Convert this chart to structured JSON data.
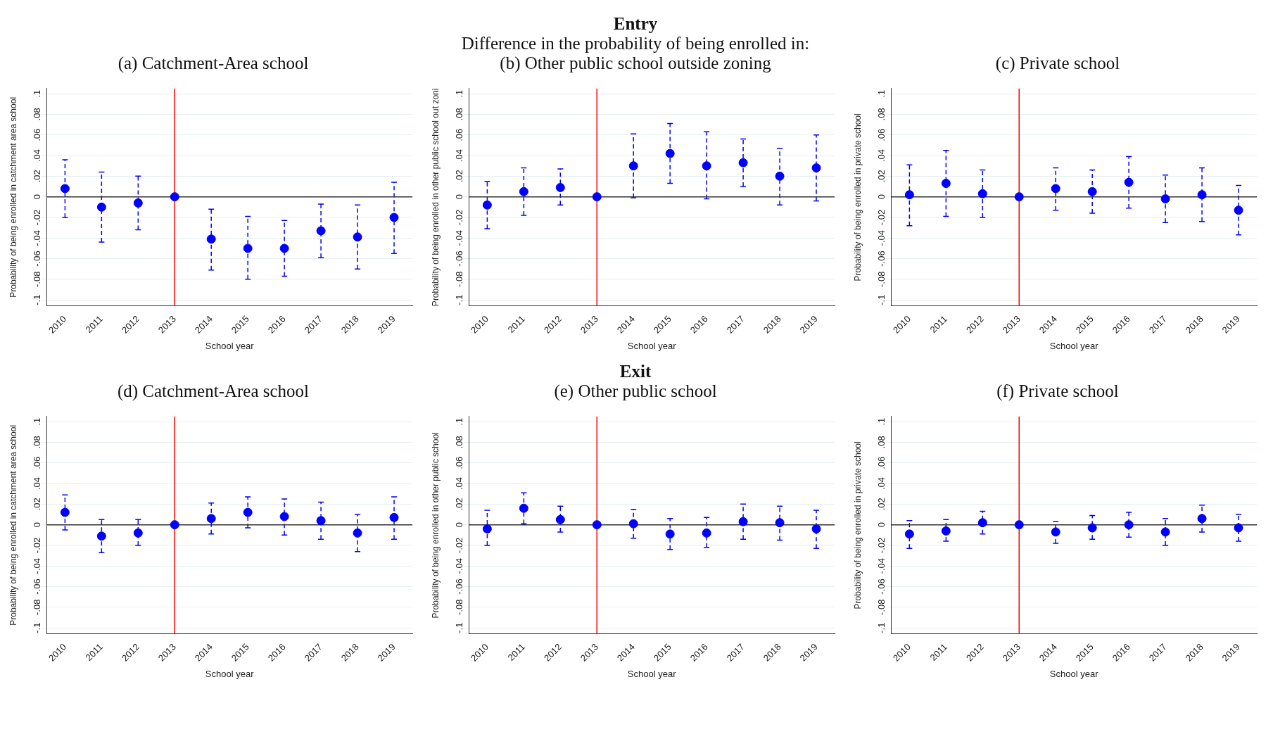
{
  "chart_data": [
    {
      "type": "scatter",
      "title": "(a) Catchment-Area school",
      "xlabel": "School year",
      "ylabel": "Probability of being enrolled in catchment area school",
      "categories": [
        "2010",
        "2011",
        "2012",
        "2013",
        "2014",
        "2015",
        "2016",
        "2017",
        "2018",
        "2019"
      ],
      "series": [
        {
          "color": "#0000ff",
          "values": [
            0.008,
            -0.01,
            -0.006,
            0,
            -0.041,
            -0.05,
            -0.05,
            -0.033,
            -0.039,
            -0.02
          ],
          "errors": [
            [
              -0.02,
              0.036
            ],
            [
              -0.044,
              0.024
            ],
            [
              -0.032,
              0.02
            ],
            null,
            [
              -0.071,
              -0.012
            ],
            [
              -0.08,
              -0.019
            ],
            [
              -0.077,
              -0.023
            ],
            [
              -0.059,
              -0.007
            ],
            [
              -0.07,
              -0.008
            ],
            [
              -0.055,
              0.014
            ]
          ]
        }
      ],
      "ylim": [
        -0.106,
        0.105
      ],
      "yticks": [
        {
          "value": -0.1,
          "label": "-.1"
        },
        {
          "value": -0.08,
          "label": "-.08"
        },
        {
          "value": -0.06,
          "label": "-.06"
        },
        {
          "value": -0.04,
          "label": "-.04"
        },
        {
          "value": -0.02,
          "label": "-.02"
        },
        {
          "value": 0,
          "label": "0"
        },
        {
          "value": 0.02,
          "label": ".02"
        },
        {
          "value": 0.04,
          "label": ".04"
        },
        {
          "value": 0.06,
          "label": ".06"
        },
        {
          "value": 0.08,
          "label": ".08"
        },
        {
          "value": 0.1,
          "label": ".1"
        }
      ],
      "ref_lines": [
        {
          "axis": "x",
          "value": "2013",
          "color": "#ff0000"
        },
        {
          "axis": "y",
          "value": 0,
          "color": "#333333"
        }
      ],
      "grid": "y",
      "legend": false,
      "marker": "circle",
      "line_style": "dashed"
    },
    {
      "type": "scatter",
      "title": "(b) Other public school outside zoning",
      "annotations": [
        "Entry",
        "Difference in the probability of being enrolled in:"
      ],
      "xlabel": "School year",
      "ylabel": "Probability of being enrolled in other public school out zoni",
      "categories": [
        "2010",
        "2011",
        "2012",
        "2013",
        "2014",
        "2015",
        "2016",
        "2017",
        "2018",
        "2019"
      ],
      "series": [
        {
          "color": "#0000ff",
          "values": [
            -0.008,
            0.005,
            0.009,
            0,
            0.03,
            0.042,
            0.03,
            0.033,
            0.02,
            0.028
          ],
          "errors": [
            [
              -0.031,
              0.015
            ],
            [
              -0.018,
              0.028
            ],
            [
              -0.008,
              0.027
            ],
            null,
            [
              -0.001,
              0.061
            ],
            [
              0.013,
              0.071
            ],
            [
              -0.002,
              0.063
            ],
            [
              0.01,
              0.056
            ],
            [
              -0.008,
              0.047
            ],
            [
              -0.004,
              0.06
            ]
          ]
        }
      ],
      "ylim": [
        -0.106,
        0.105
      ],
      "yticks": [
        {
          "value": -0.1,
          "label": "-.1"
        },
        {
          "value": -0.08,
          "label": "-.08"
        },
        {
          "value": -0.06,
          "label": "-.06"
        },
        {
          "value": -0.04,
          "label": "-.04"
        },
        {
          "value": -0.02,
          "label": "-.02"
        },
        {
          "value": 0,
          "label": "0"
        },
        {
          "value": 0.02,
          "label": ".02"
        },
        {
          "value": 0.04,
          "label": ".04"
        },
        {
          "value": 0.06,
          "label": ".06"
        },
        {
          "value": 0.08,
          "label": ".08"
        },
        {
          "value": 0.1,
          "label": ".1"
        }
      ],
      "ref_lines": [
        {
          "axis": "x",
          "value": "2013",
          "color": "#ff0000"
        },
        {
          "axis": "y",
          "value": 0,
          "color": "#333333"
        }
      ],
      "grid": "y",
      "legend": false,
      "marker": "circle",
      "line_style": "dashed"
    },
    {
      "type": "scatter",
      "title": "(c) Private school",
      "xlabel": "School year",
      "ylabel": "Probability of being enrolled in private school",
      "categories": [
        "2010",
        "2011",
        "2012",
        "2013",
        "2014",
        "2015",
        "2016",
        "2017",
        "2018",
        "2019"
      ],
      "series": [
        {
          "color": "#0000ff",
          "values": [
            0.002,
            0.013,
            0.003,
            0,
            0.008,
            0.005,
            0.014,
            -0.002,
            0.002,
            -0.013
          ],
          "errors": [
            [
              -0.028,
              0.031
            ],
            [
              -0.019,
              0.045
            ],
            [
              -0.02,
              0.026
            ],
            null,
            [
              -0.013,
              0.028
            ],
            [
              -0.016,
              0.026
            ],
            [
              -0.011,
              0.039
            ],
            [
              -0.025,
              0.021
            ],
            [
              -0.024,
              0.028
            ],
            [
              -0.037,
              0.011
            ]
          ]
        }
      ],
      "ylim": [
        -0.106,
        0.105
      ],
      "yticks": [
        {
          "value": -0.1,
          "label": "-.1"
        },
        {
          "value": -0.08,
          "label": "-.08"
        },
        {
          "value": -0.06,
          "label": "-.06"
        },
        {
          "value": -0.04,
          "label": "-.04"
        },
        {
          "value": -0.02,
          "label": "-.02"
        },
        {
          "value": 0,
          "label": "0"
        },
        {
          "value": 0.02,
          "label": ".02"
        },
        {
          "value": 0.04,
          "label": ".04"
        },
        {
          "value": 0.06,
          "label": ".06"
        },
        {
          "value": 0.08,
          "label": ".08"
        },
        {
          "value": 0.1,
          "label": ".1"
        }
      ],
      "ref_lines": [
        {
          "axis": "x",
          "value": "2013",
          "color": "#ff0000"
        },
        {
          "axis": "y",
          "value": 0,
          "color": "#333333"
        }
      ],
      "grid": "y",
      "legend": false,
      "marker": "circle",
      "line_style": "dashed"
    },
    {
      "type": "scatter",
      "title": "(d) Catchment-Area school",
      "xlabel": "School year",
      "ylabel": "Probability of being enrolled in catchment area school",
      "categories": [
        "2010",
        "2011",
        "2012",
        "2013",
        "2014",
        "2015",
        "2016",
        "2017",
        "2018",
        "2019"
      ],
      "series": [
        {
          "color": "#0000ff",
          "values": [
            0.012,
            -0.011,
            -0.008,
            0,
            0.006,
            0.012,
            0.008,
            0.004,
            -0.008,
            0.007
          ],
          "errors": [
            [
              -0.005,
              0.029
            ],
            [
              -0.027,
              0.005
            ],
            [
              -0.02,
              0.005
            ],
            null,
            [
              -0.009,
              0.021
            ],
            [
              -0.003,
              0.027
            ],
            [
              -0.01,
              0.025
            ],
            [
              -0.014,
              0.022
            ],
            [
              -0.026,
              0.01
            ],
            [
              -0.014,
              0.027
            ]
          ]
        }
      ],
      "ylim": [
        -0.106,
        0.105
      ],
      "yticks": [
        {
          "value": -0.1,
          "label": "-.1"
        },
        {
          "value": -0.08,
          "label": "-.08"
        },
        {
          "value": -0.06,
          "label": "-.06"
        },
        {
          "value": -0.04,
          "label": "-.04"
        },
        {
          "value": -0.02,
          "label": "-.02"
        },
        {
          "value": 0,
          "label": "0"
        },
        {
          "value": 0.02,
          "label": ".02"
        },
        {
          "value": 0.04,
          "label": ".04"
        },
        {
          "value": 0.06,
          "label": ".06"
        },
        {
          "value": 0.08,
          "label": ".08"
        },
        {
          "value": 0.1,
          "label": ".1"
        }
      ],
      "ref_lines": [
        {
          "axis": "x",
          "value": "2013",
          "color": "#ff0000"
        },
        {
          "axis": "y",
          "value": 0,
          "color": "#333333"
        }
      ],
      "grid": "y",
      "legend": false,
      "marker": "circle",
      "line_style": "dashed"
    },
    {
      "type": "scatter",
      "title": "(e) Other public school",
      "annotations": [
        "Exit"
      ],
      "xlabel": "School year",
      "ylabel": "Probability of being enrolled in other public school",
      "categories": [
        "2010",
        "2011",
        "2012",
        "2013",
        "2014",
        "2015",
        "2016",
        "2017",
        "2018",
        "2019"
      ],
      "series": [
        {
          "color": "#0000ff",
          "values": [
            -0.004,
            0.016,
            0.005,
            0,
            0.001,
            -0.009,
            -0.008,
            0.003,
            0.002,
            -0.004
          ],
          "errors": [
            [
              -0.02,
              0.014
            ],
            [
              0.001,
              0.031
            ],
            [
              -0.007,
              0.018
            ],
            null,
            [
              -0.013,
              0.015
            ],
            [
              -0.024,
              0.006
            ],
            [
              -0.022,
              0.007
            ],
            [
              -0.014,
              0.02
            ],
            [
              -0.015,
              0.018
            ],
            [
              -0.023,
              0.014
            ]
          ]
        }
      ],
      "ylim": [
        -0.106,
        0.105
      ],
      "yticks": [
        {
          "value": -0.1,
          "label": "-.1"
        },
        {
          "value": -0.08,
          "label": "-.08"
        },
        {
          "value": -0.06,
          "label": "-.06"
        },
        {
          "value": -0.04,
          "label": "-.04"
        },
        {
          "value": -0.02,
          "label": "-.02"
        },
        {
          "value": 0,
          "label": "0"
        },
        {
          "value": 0.02,
          "label": ".02"
        },
        {
          "value": 0.04,
          "label": ".04"
        },
        {
          "value": 0.06,
          "label": ".06"
        },
        {
          "value": 0.08,
          "label": ".08"
        },
        {
          "value": 0.1,
          "label": ".1"
        }
      ],
      "ref_lines": [
        {
          "axis": "x",
          "value": "2013",
          "color": "#ff0000"
        },
        {
          "axis": "y",
          "value": 0,
          "color": "#333333"
        }
      ],
      "grid": "y",
      "legend": false,
      "marker": "circle",
      "line_style": "dashed"
    },
    {
      "type": "scatter",
      "title": "(f) Private school",
      "xlabel": "School year",
      "ylabel": "Probability of being enrolled in private school",
      "categories": [
        "2010",
        "2011",
        "2012",
        "2013",
        "2014",
        "2015",
        "2016",
        "2017",
        "2018",
        "2019"
      ],
      "series": [
        {
          "color": "#0000ff",
          "values": [
            -0.009,
            -0.006,
            0.002,
            0,
            -0.007,
            -0.003,
            0.0,
            -0.007,
            0.006,
            -0.003
          ],
          "errors": [
            [
              -0.023,
              0.004
            ],
            [
              -0.016,
              0.005
            ],
            [
              -0.009,
              0.013
            ],
            null,
            [
              -0.018,
              0.003
            ],
            [
              -0.014,
              0.009
            ],
            [
              -0.012,
              0.012
            ],
            [
              -0.02,
              0.006
            ],
            [
              -0.007,
              0.019
            ],
            [
              -0.016,
              0.01
            ]
          ]
        }
      ],
      "ylim": [
        -0.106,
        0.105
      ],
      "yticks": [
        {
          "value": -0.1,
          "label": "-.1"
        },
        {
          "value": -0.08,
          "label": "-.08"
        },
        {
          "value": -0.06,
          "label": "-.06"
        },
        {
          "value": -0.04,
          "label": "-.04"
        },
        {
          "value": -0.02,
          "label": "-.02"
        },
        {
          "value": 0,
          "label": "0"
        },
        {
          "value": 0.02,
          "label": ".02"
        },
        {
          "value": 0.04,
          "label": ".04"
        },
        {
          "value": 0.06,
          "label": ".06"
        },
        {
          "value": 0.08,
          "label": ".08"
        },
        {
          "value": 0.1,
          "label": ".1"
        }
      ],
      "ref_lines": [
        {
          "axis": "x",
          "value": "2013",
          "color": "#ff0000"
        },
        {
          "axis": "y",
          "value": 0,
          "color": "#333333"
        }
      ],
      "grid": "y",
      "legend": false,
      "marker": "circle",
      "line_style": "dashed"
    }
  ]
}
